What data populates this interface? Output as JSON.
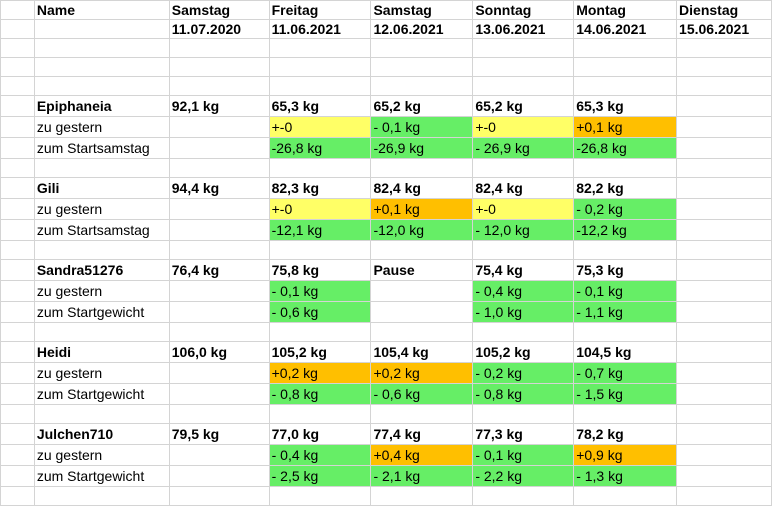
{
  "header": {
    "name_label": "Name",
    "days": [
      {
        "weekday": "Samstag",
        "date": "11.07.2020"
      },
      {
        "weekday": "Freitag",
        "date": "11.06.2021"
      },
      {
        "weekday": "Samstag",
        "date": "12.06.2021"
      },
      {
        "weekday": "Sonntag",
        "date": "13.06.2021"
      },
      {
        "weekday": "Montag",
        "date": "14.06.2021"
      },
      {
        "weekday": "Dienstag",
        "date": "15.06.2021"
      }
    ]
  },
  "colors": {
    "green": "#66ee66",
    "yellow": "#ffff66",
    "orange": "#ffbf00",
    "grid": "#d4d4d4"
  },
  "people": [
    {
      "name": "Epiphaneia",
      "weights": [
        "92,1 kg",
        "65,3 kg",
        "65,2 kg",
        "65,2 kg",
        "65,3 kg",
        ""
      ],
      "rows": [
        {
          "label": "zu gestern",
          "values": [
            "",
            "+-0",
            "- 0,1 kg",
            "+-0",
            "+0,1 kg",
            ""
          ],
          "colors": [
            "",
            "yellow",
            "green",
            "yellow",
            "orange",
            ""
          ]
        },
        {
          "label": "zum Startsamstag",
          "values": [
            "",
            "-26,8 kg",
            "-26,9 kg",
            "- 26,9 kg",
            "-26,8 kg",
            ""
          ],
          "colors": [
            "",
            "green",
            "green",
            "green",
            "green",
            ""
          ]
        }
      ]
    },
    {
      "name": "Gili",
      "weights": [
        "94,4 kg",
        "82,3 kg",
        "82,4 kg",
        "82,4 kg",
        "82,2 kg",
        ""
      ],
      "rows": [
        {
          "label": "zu gestern",
          "values": [
            "",
            "+-0",
            "+0,1 kg",
            "+-0",
            "- 0,2 kg",
            ""
          ],
          "colors": [
            "",
            "yellow",
            "orange",
            "yellow",
            "green",
            ""
          ]
        },
        {
          "label": "zum Startsamstag",
          "values": [
            "",
            "-12,1 kg",
            "-12,0 kg",
            "- 12,0 kg",
            "-12,2 kg",
            ""
          ],
          "colors": [
            "",
            "green",
            "green",
            "green",
            "green",
            ""
          ]
        }
      ]
    },
    {
      "name": "Sandra51276",
      "weights": [
        "76,4 kg",
        "75,8 kg",
        "Pause",
        "75,4 kg",
        "75,3 kg",
        ""
      ],
      "rows": [
        {
          "label": "zu gestern",
          "values": [
            "",
            "- 0,1 kg",
            "",
            "- 0,4 kg",
            "- 0,1 kg",
            ""
          ],
          "colors": [
            "",
            "green",
            "",
            "green",
            "green",
            ""
          ]
        },
        {
          "label": "zum Startgewicht",
          "values": [
            "",
            "- 0,6 kg",
            "",
            "- 1,0 kg",
            "- 1,1 kg",
            ""
          ],
          "colors": [
            "",
            "green",
            "",
            "green",
            "green",
            ""
          ]
        }
      ]
    },
    {
      "name": "Heidi",
      "weights": [
        "106,0 kg",
        "105,2  kg",
        "105,4 kg",
        "105,2 kg",
        "104,5 kg",
        ""
      ],
      "rows": [
        {
          "label": "zu gestern",
          "values": [
            "",
            "+0,2 kg",
            "+0,2 kg",
            " - 0,2 kg",
            "- 0,7 kg",
            ""
          ],
          "colors": [
            "",
            "orange",
            "orange",
            "green",
            "green",
            ""
          ]
        },
        {
          "label": "zum Startgewicht",
          "values": [
            "",
            "- 0,8 kg",
            "- 0,6 kg",
            " - 0,8 kg",
            "- 1,5 kg",
            ""
          ],
          "colors": [
            "",
            "green",
            "green",
            "green",
            "green",
            ""
          ]
        }
      ]
    },
    {
      "name": "Julchen710",
      "weights": [
        "79,5 kg",
        "77,0 kg",
        "77,4 kg",
        "77,3 kg",
        "78,2 kg",
        ""
      ],
      "rows": [
        {
          "label": "zu gestern",
          "values": [
            "",
            "- 0,4 kg",
            "+0,4 kg",
            "- 0,1 kg",
            "+0,9 kg",
            ""
          ],
          "colors": [
            "",
            "green",
            "orange",
            "green",
            "orange",
            ""
          ]
        },
        {
          "label": "zum Startgewicht",
          "values": [
            "",
            "- 2,5 kg",
            "- 2,1 kg",
            "- 2,2 kg",
            "- 1,3 kg",
            ""
          ],
          "colors": [
            "",
            "green",
            "green",
            "green",
            "green",
            ""
          ]
        }
      ]
    }
  ]
}
